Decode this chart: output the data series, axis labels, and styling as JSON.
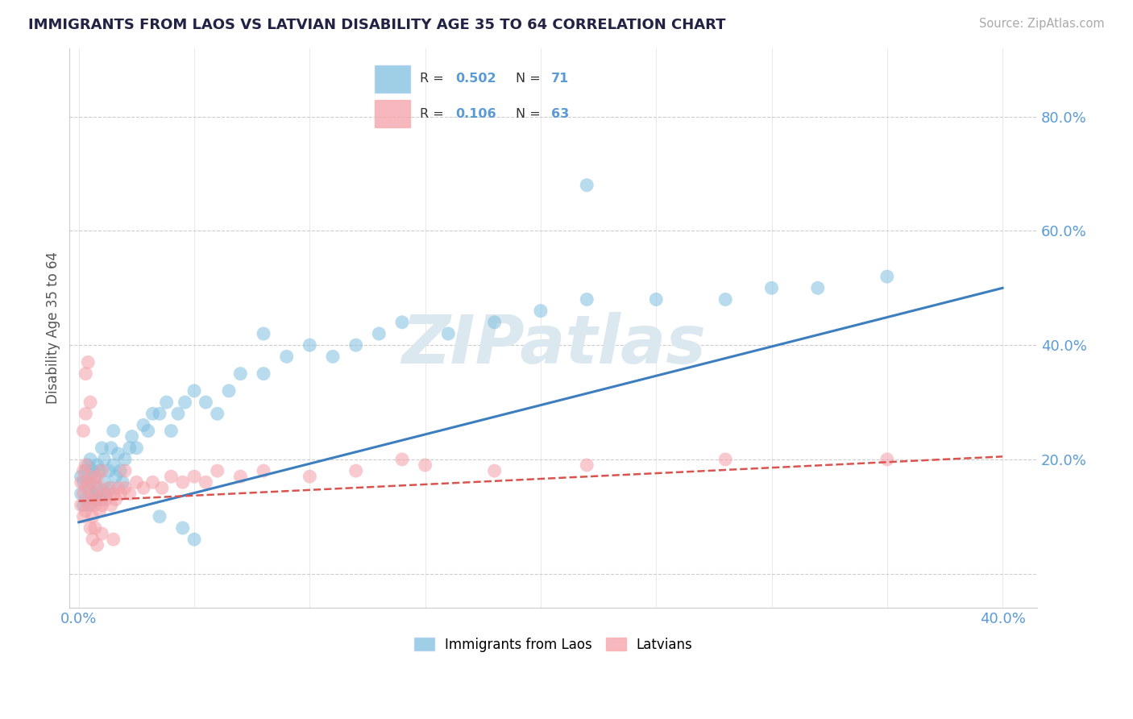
{
  "title": "IMMIGRANTS FROM LAOS VS LATVIAN DISABILITY AGE 35 TO 64 CORRELATION CHART",
  "source_text": "Source: ZipAtlas.com",
  "ylabel": "Disability Age 35 to 64",
  "xlim": [
    -0.004,
    0.415
  ],
  "ylim": [
    -0.06,
    0.92
  ],
  "xtick_vals": [
    0.0,
    0.05,
    0.1,
    0.15,
    0.2,
    0.25,
    0.3,
    0.35,
    0.4
  ],
  "ytick_vals": [
    0.0,
    0.2,
    0.4,
    0.6,
    0.8
  ],
  "blue_color": "#7fbfdf",
  "pink_color": "#f4a0a8",
  "blue_line_color": "#3d7ebf",
  "pink_line_color": "#d9534f",
  "title_color": "#222244",
  "tick_color": "#5b9bd5",
  "grid_color": "#cccccc",
  "watermark_color": "#dce8f0",
  "blue_trend_x0": 0.0,
  "blue_trend_y0": 0.09,
  "blue_trend_x1": 0.4,
  "blue_trend_y1": 0.5,
  "pink_trend_x0": 0.0,
  "pink_trend_y0": 0.127,
  "pink_trend_x1": 0.4,
  "pink_trend_y1": 0.205,
  "blue_scatter_x": [
    0.001,
    0.001,
    0.002,
    0.002,
    0.003,
    0.003,
    0.004,
    0.004,
    0.005,
    0.005,
    0.005,
    0.006,
    0.006,
    0.007,
    0.007,
    0.008,
    0.008,
    0.009,
    0.009,
    0.01,
    0.01,
    0.011,
    0.011,
    0.012,
    0.013,
    0.014,
    0.014,
    0.015,
    0.016,
    0.017,
    0.018,
    0.019,
    0.02,
    0.022,
    0.023,
    0.025,
    0.028,
    0.03,
    0.032,
    0.035,
    0.038,
    0.04,
    0.043,
    0.046,
    0.05,
    0.055,
    0.06,
    0.065,
    0.07,
    0.08,
    0.09,
    0.1,
    0.11,
    0.12,
    0.13,
    0.14,
    0.16,
    0.18,
    0.2,
    0.22,
    0.25,
    0.28,
    0.3,
    0.32,
    0.35,
    0.08,
    0.22,
    0.035,
    0.045,
    0.05,
    0.015
  ],
  "blue_scatter_y": [
    0.14,
    0.17,
    0.12,
    0.16,
    0.13,
    0.18,
    0.15,
    0.19,
    0.12,
    0.16,
    0.2,
    0.14,
    0.18,
    0.13,
    0.17,
    0.15,
    0.19,
    0.14,
    0.18,
    0.13,
    0.22,
    0.16,
    0.2,
    0.14,
    0.18,
    0.15,
    0.22,
    0.19,
    0.17,
    0.21,
    0.18,
    0.16,
    0.2,
    0.22,
    0.24,
    0.22,
    0.26,
    0.25,
    0.28,
    0.28,
    0.3,
    0.25,
    0.28,
    0.3,
    0.32,
    0.3,
    0.28,
    0.32,
    0.35,
    0.35,
    0.38,
    0.4,
    0.38,
    0.4,
    0.42,
    0.44,
    0.42,
    0.44,
    0.46,
    0.48,
    0.48,
    0.48,
    0.5,
    0.5,
    0.52,
    0.42,
    0.68,
    0.1,
    0.08,
    0.06,
    0.25
  ],
  "pink_scatter_x": [
    0.001,
    0.001,
    0.002,
    0.002,
    0.002,
    0.003,
    0.003,
    0.003,
    0.004,
    0.004,
    0.005,
    0.005,
    0.005,
    0.006,
    0.006,
    0.007,
    0.007,
    0.008,
    0.008,
    0.009,
    0.009,
    0.01,
    0.01,
    0.011,
    0.012,
    0.013,
    0.014,
    0.015,
    0.016,
    0.017,
    0.018,
    0.02,
    0.022,
    0.025,
    0.028,
    0.032,
    0.036,
    0.04,
    0.045,
    0.05,
    0.055,
    0.06,
    0.07,
    0.08,
    0.1,
    0.12,
    0.15,
    0.18,
    0.22,
    0.28,
    0.35,
    0.003,
    0.004,
    0.006,
    0.008,
    0.01,
    0.015,
    0.002,
    0.003,
    0.005,
    0.007,
    0.02,
    0.14
  ],
  "pink_scatter_y": [
    0.12,
    0.16,
    0.1,
    0.14,
    0.18,
    0.11,
    0.15,
    0.19,
    0.12,
    0.16,
    0.08,
    0.13,
    0.17,
    0.1,
    0.14,
    0.12,
    0.16,
    0.13,
    0.17,
    0.11,
    0.15,
    0.12,
    0.18,
    0.14,
    0.13,
    0.15,
    0.12,
    0.14,
    0.13,
    0.15,
    0.14,
    0.15,
    0.14,
    0.16,
    0.15,
    0.16,
    0.15,
    0.17,
    0.16,
    0.17,
    0.16,
    0.18,
    0.17,
    0.18,
    0.17,
    0.18,
    0.19,
    0.18,
    0.19,
    0.2,
    0.2,
    0.35,
    0.37,
    0.06,
    0.05,
    0.07,
    0.06,
    0.25,
    0.28,
    0.3,
    0.08,
    0.18,
    0.2
  ],
  "figsize": [
    14.06,
    8.92
  ],
  "dpi": 100
}
